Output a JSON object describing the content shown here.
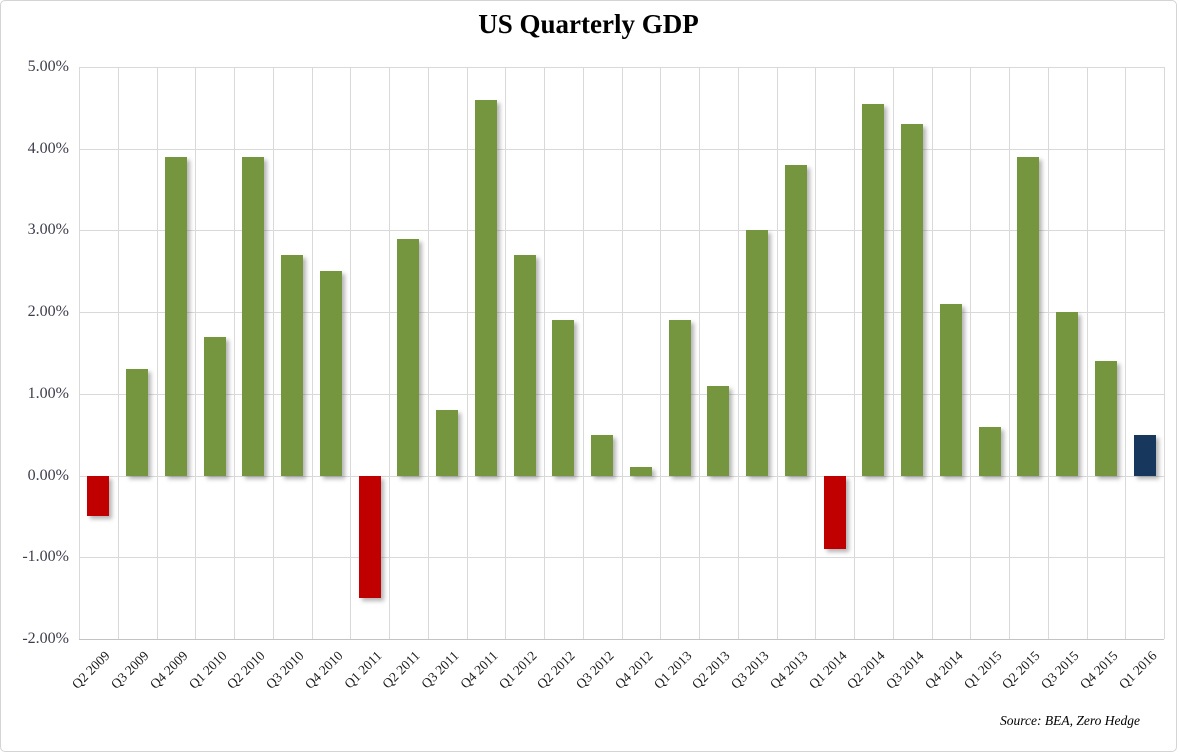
{
  "title": "US Quarterly GDP",
  "source_note": "Source: BEA, Zero Hedge",
  "colors": {
    "green": "#76953F",
    "red": "#C00000",
    "navy": "#17375D",
    "gridline": "#D9D9D9",
    "axis_line": "#C3C3C3",
    "y_label": "#3D3D4C",
    "x_label": "#1A1A1A",
    "title": "#000000"
  },
  "chart_data": {
    "type": "bar",
    "title": "US Quarterly GDP",
    "xlabel": "",
    "ylabel": "",
    "categories": [
      "Q2 2009",
      "Q3 2009",
      "Q4 2009",
      "Q1 2010",
      "Q2 2010",
      "Q3 2010",
      "Q4 2010",
      "Q1 2011",
      "Q2 2011",
      "Q3 2011",
      "Q4 2011",
      "Q1 2012",
      "Q2 2012",
      "Q3 2012",
      "Q4 2012",
      "Q1 2013",
      "Q2 2013",
      "Q3 2013",
      "Q4 2013",
      "Q1 2014",
      "Q2 2014",
      "Q3 2014",
      "Q4 2014",
      "Q1 2015",
      "Q2 2015",
      "Q3 2015",
      "Q4 2015",
      "Q1 2016"
    ],
    "values": [
      -0.5,
      1.3,
      3.9,
      1.7,
      3.9,
      2.7,
      2.5,
      -1.5,
      2.9,
      0.8,
      4.6,
      2.7,
      1.9,
      0.5,
      0.1,
      1.9,
      1.1,
      3.0,
      3.8,
      -0.9,
      4.55,
      4.3,
      2.1,
      0.6,
      3.9,
      2.0,
      1.4,
      0.5
    ],
    "point_colors": [
      "red",
      "green",
      "green",
      "green",
      "green",
      "green",
      "green",
      "red",
      "green",
      "green",
      "green",
      "green",
      "green",
      "green",
      "green",
      "green",
      "green",
      "green",
      "green",
      "red",
      "green",
      "green",
      "green",
      "green",
      "green",
      "green",
      "green",
      "navy"
    ],
    "ylim": [
      -2,
      5
    ],
    "yticks": [
      5,
      4,
      3,
      2,
      1,
      0,
      -1,
      -2
    ],
    "ytick_format": "0.00%",
    "grid": true,
    "legend": false,
    "annotations": [
      "Source: BEA, Zero Hedge"
    ]
  }
}
